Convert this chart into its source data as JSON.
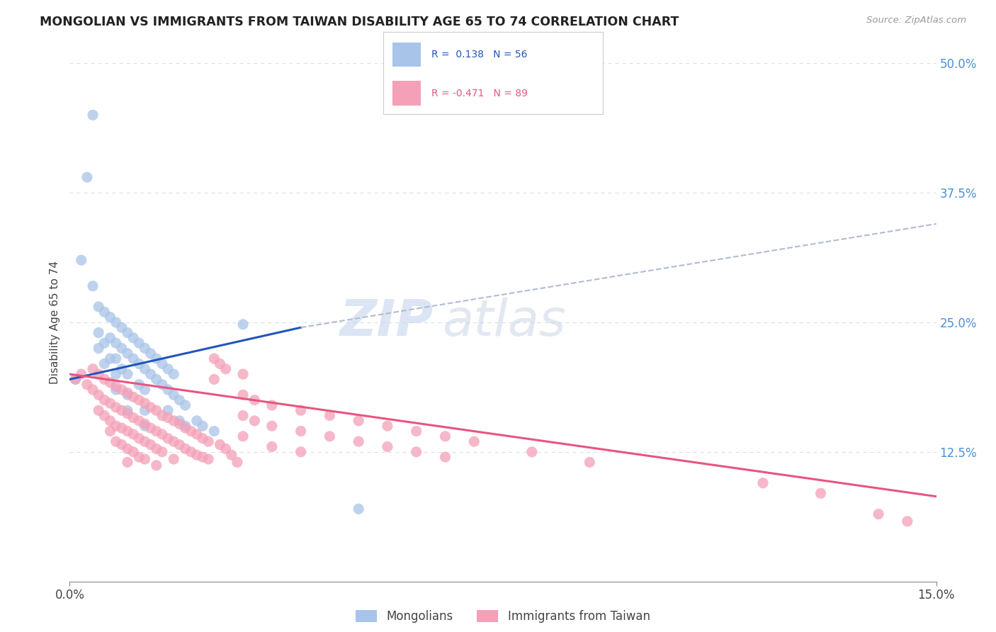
{
  "title": "MONGOLIAN VS IMMIGRANTS FROM TAIWAN DISABILITY AGE 65 TO 74 CORRELATION CHART",
  "source": "Source: ZipAtlas.com",
  "ylabel": "Disability Age 65 to 74",
  "mongolian_color": "#a8c4e8",
  "taiwan_color": "#f4a0b8",
  "mongolian_line_color": "#2255bb",
  "taiwan_line_color": "#e85580",
  "trend_extend_color": "#b0bcd0",
  "watermark_color": "#c8d8f0",
  "mongolian_scatter": [
    [
      0.001,
      0.195
    ],
    [
      0.002,
      0.31
    ],
    [
      0.003,
      0.39
    ],
    [
      0.004,
      0.45
    ],
    [
      0.004,
      0.285
    ],
    [
      0.005,
      0.265
    ],
    [
      0.005,
      0.24
    ],
    [
      0.005,
      0.225
    ],
    [
      0.006,
      0.26
    ],
    [
      0.006,
      0.23
    ],
    [
      0.006,
      0.21
    ],
    [
      0.007,
      0.255
    ],
    [
      0.007,
      0.235
    ],
    [
      0.007,
      0.215
    ],
    [
      0.008,
      0.25
    ],
    [
      0.008,
      0.23
    ],
    [
      0.008,
      0.215
    ],
    [
      0.008,
      0.2
    ],
    [
      0.008,
      0.185
    ],
    [
      0.009,
      0.245
    ],
    [
      0.009,
      0.225
    ],
    [
      0.009,
      0.205
    ],
    [
      0.01,
      0.24
    ],
    [
      0.01,
      0.22
    ],
    [
      0.01,
      0.2
    ],
    [
      0.01,
      0.18
    ],
    [
      0.01,
      0.165
    ],
    [
      0.011,
      0.235
    ],
    [
      0.011,
      0.215
    ],
    [
      0.012,
      0.23
    ],
    [
      0.012,
      0.21
    ],
    [
      0.012,
      0.19
    ],
    [
      0.013,
      0.225
    ],
    [
      0.013,
      0.205
    ],
    [
      0.013,
      0.185
    ],
    [
      0.013,
      0.165
    ],
    [
      0.013,
      0.15
    ],
    [
      0.014,
      0.22
    ],
    [
      0.014,
      0.2
    ],
    [
      0.015,
      0.215
    ],
    [
      0.015,
      0.195
    ],
    [
      0.016,
      0.21
    ],
    [
      0.016,
      0.19
    ],
    [
      0.017,
      0.205
    ],
    [
      0.017,
      0.185
    ],
    [
      0.017,
      0.165
    ],
    [
      0.018,
      0.2
    ],
    [
      0.018,
      0.18
    ],
    [
      0.019,
      0.175
    ],
    [
      0.019,
      0.155
    ],
    [
      0.02,
      0.17
    ],
    [
      0.02,
      0.15
    ],
    [
      0.022,
      0.155
    ],
    [
      0.023,
      0.15
    ],
    [
      0.025,
      0.145
    ],
    [
      0.03,
      0.248
    ],
    [
      0.05,
      0.07
    ]
  ],
  "taiwan_scatter": [
    [
      0.001,
      0.195
    ],
    [
      0.002,
      0.2
    ],
    [
      0.003,
      0.19
    ],
    [
      0.004,
      0.205
    ],
    [
      0.004,
      0.185
    ],
    [
      0.005,
      0.2
    ],
    [
      0.005,
      0.18
    ],
    [
      0.005,
      0.165
    ],
    [
      0.006,
      0.195
    ],
    [
      0.006,
      0.175
    ],
    [
      0.006,
      0.16
    ],
    [
      0.007,
      0.192
    ],
    [
      0.007,
      0.172
    ],
    [
      0.007,
      0.155
    ],
    [
      0.007,
      0.145
    ],
    [
      0.008,
      0.188
    ],
    [
      0.008,
      0.168
    ],
    [
      0.008,
      0.15
    ],
    [
      0.008,
      0.135
    ],
    [
      0.009,
      0.185
    ],
    [
      0.009,
      0.165
    ],
    [
      0.009,
      0.148
    ],
    [
      0.009,
      0.132
    ],
    [
      0.01,
      0.182
    ],
    [
      0.01,
      0.162
    ],
    [
      0.01,
      0.145
    ],
    [
      0.01,
      0.128
    ],
    [
      0.01,
      0.115
    ],
    [
      0.011,
      0.178
    ],
    [
      0.011,
      0.158
    ],
    [
      0.011,
      0.142
    ],
    [
      0.011,
      0.125
    ],
    [
      0.012,
      0.175
    ],
    [
      0.012,
      0.155
    ],
    [
      0.012,
      0.138
    ],
    [
      0.012,
      0.12
    ],
    [
      0.013,
      0.172
    ],
    [
      0.013,
      0.152
    ],
    [
      0.013,
      0.135
    ],
    [
      0.013,
      0.118
    ],
    [
      0.014,
      0.168
    ],
    [
      0.014,
      0.148
    ],
    [
      0.014,
      0.132
    ],
    [
      0.015,
      0.165
    ],
    [
      0.015,
      0.145
    ],
    [
      0.015,
      0.128
    ],
    [
      0.015,
      0.112
    ],
    [
      0.016,
      0.16
    ],
    [
      0.016,
      0.142
    ],
    [
      0.016,
      0.125
    ],
    [
      0.017,
      0.158
    ],
    [
      0.017,
      0.138
    ],
    [
      0.018,
      0.155
    ],
    [
      0.018,
      0.135
    ],
    [
      0.018,
      0.118
    ],
    [
      0.019,
      0.152
    ],
    [
      0.019,
      0.132
    ],
    [
      0.02,
      0.148
    ],
    [
      0.02,
      0.128
    ],
    [
      0.021,
      0.145
    ],
    [
      0.021,
      0.125
    ],
    [
      0.022,
      0.142
    ],
    [
      0.022,
      0.122
    ],
    [
      0.023,
      0.138
    ],
    [
      0.023,
      0.12
    ],
    [
      0.024,
      0.135
    ],
    [
      0.024,
      0.118
    ],
    [
      0.025,
      0.215
    ],
    [
      0.025,
      0.195
    ],
    [
      0.026,
      0.21
    ],
    [
      0.026,
      0.132
    ],
    [
      0.027,
      0.205
    ],
    [
      0.027,
      0.128
    ],
    [
      0.028,
      0.122
    ],
    [
      0.029,
      0.115
    ],
    [
      0.03,
      0.2
    ],
    [
      0.03,
      0.18
    ],
    [
      0.03,
      0.16
    ],
    [
      0.03,
      0.14
    ],
    [
      0.032,
      0.175
    ],
    [
      0.032,
      0.155
    ],
    [
      0.035,
      0.17
    ],
    [
      0.035,
      0.15
    ],
    [
      0.035,
      0.13
    ],
    [
      0.04,
      0.165
    ],
    [
      0.04,
      0.145
    ],
    [
      0.04,
      0.125
    ],
    [
      0.045,
      0.16
    ],
    [
      0.045,
      0.14
    ],
    [
      0.05,
      0.155
    ],
    [
      0.05,
      0.135
    ],
    [
      0.055,
      0.15
    ],
    [
      0.055,
      0.13
    ],
    [
      0.06,
      0.145
    ],
    [
      0.06,
      0.125
    ],
    [
      0.065,
      0.14
    ],
    [
      0.065,
      0.12
    ],
    [
      0.07,
      0.135
    ],
    [
      0.08,
      0.125
    ],
    [
      0.09,
      0.115
    ],
    [
      0.12,
      0.095
    ],
    [
      0.13,
      0.085
    ],
    [
      0.14,
      0.065
    ],
    [
      0.145,
      0.058
    ]
  ],
  "mongolian_trend": [
    0.0,
    0.04,
    0.195,
    0.245
  ],
  "mongolian_trend_extend": [
    0.04,
    0.15,
    0.245,
    0.345
  ],
  "taiwan_trend": [
    0.0,
    0.15,
    0.2,
    0.082
  ],
  "xmin": 0.0,
  "xmax": 0.15,
  "ymin": 0.0,
  "ymax": 0.5,
  "ytick_vals": [
    0.125,
    0.25,
    0.375,
    0.5
  ],
  "ytick_labels": [
    "12.5%",
    "25.0%",
    "37.5%",
    "50.0%"
  ],
  "xtick_vals": [
    0.0,
    0.15
  ],
  "xtick_labels": [
    "0.0%",
    "15.0%"
  ],
  "grid_color": "#d8e0ec",
  "tick_color": "#4a90d9",
  "background_color": "#ffffff"
}
